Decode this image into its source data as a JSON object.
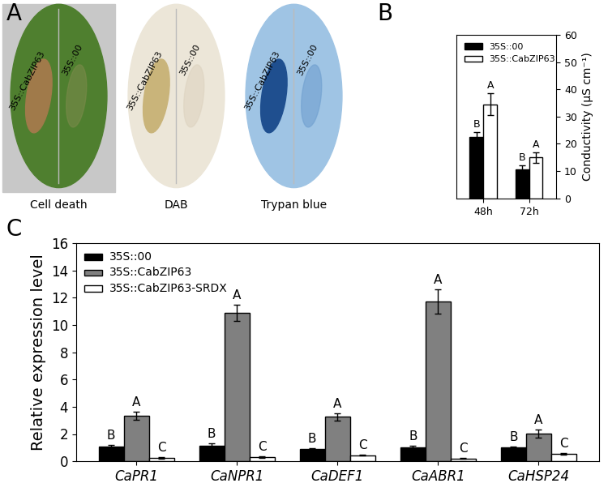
{
  "panel_A": {
    "panel_label": "A",
    "images": [
      {
        "caption": "Cell death",
        "labels": [
          "35S::CabZIP63",
          "35S::00"
        ]
      },
      {
        "caption": "DAB",
        "labels": [
          "35S::CabZIP63",
          "35S::00"
        ]
      },
      {
        "caption": "Trypan blue",
        "labels": [
          "35S::CabZIP63",
          "35S::00"
        ]
      }
    ]
  },
  "chart_data": [
    {
      "type": "bar",
      "panel_label": "B",
      "categories": [
        "48h",
        "72h"
      ],
      "y_label": "Conductivity (μS cm⁻¹)",
      "ylim": [
        0,
        60
      ],
      "yticks": [
        0,
        10,
        20,
        30,
        40,
        50,
        60
      ],
      "legend": "upper left",
      "series": [
        {
          "name": "35S::00",
          "color": "#000000",
          "values": [
            22.5,
            10.5
          ],
          "errors": [
            1.8,
            1.5
          ],
          "significance": [
            "B",
            "B"
          ]
        },
        {
          "name": "35S::CabZIP63",
          "color": "#ffffff",
          "values": [
            34.5,
            15.0
          ],
          "errors": [
            4.0,
            2.0
          ],
          "significance": [
            "A",
            "A"
          ]
        }
      ]
    },
    {
      "type": "bar",
      "panel_label": "C",
      "categories": [
        "CaPR1",
        "CaNPR1",
        "CaDEF1",
        "CaABR1",
        "CaHSP24"
      ],
      "y_label": "Relative expression level",
      "ylim": [
        0,
        16
      ],
      "yticks": [
        0,
        2,
        4,
        6,
        8,
        10,
        12,
        14,
        16
      ],
      "legend": "upper left",
      "series": [
        {
          "name": "35S::00",
          "color": "#000000",
          "values": [
            1.05,
            1.15,
            0.9,
            1.0,
            1.0
          ],
          "errors": [
            0.15,
            0.15,
            0.05,
            0.15,
            0.05
          ],
          "significance": [
            "B",
            "B",
            "B",
            "B",
            "B"
          ]
        },
        {
          "name": "35S::CabZIP63",
          "color": "#808080",
          "values": [
            3.35,
            10.9,
            3.25,
            11.7,
            2.05
          ],
          "errors": [
            0.3,
            0.6,
            0.25,
            0.9,
            0.3
          ],
          "significance": [
            "A",
            "A",
            "A",
            "A",
            "A"
          ]
        },
        {
          "name": "35S::CabZIP63-SRDX",
          "color": "#ffffff",
          "values": [
            0.25,
            0.3,
            0.45,
            0.2,
            0.55
          ],
          "errors": [
            0.05,
            0.05,
            0.03,
            0.03,
            0.05
          ],
          "significance": [
            "C",
            "C",
            "C",
            "C",
            "C"
          ]
        }
      ]
    }
  ]
}
